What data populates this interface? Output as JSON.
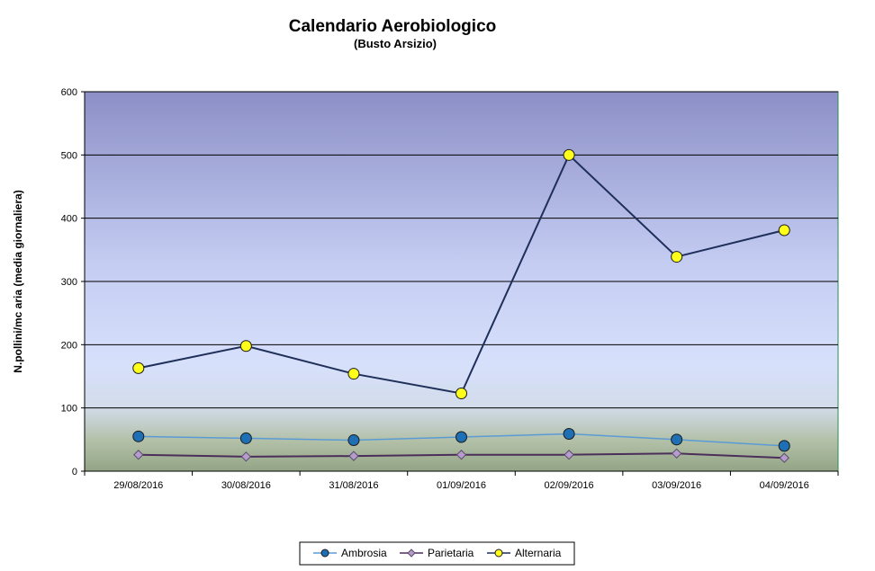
{
  "chart_data": {
    "type": "line",
    "title": "Calendario Aerobiologico",
    "subtitle": "(Busto Arsizio)",
    "xlabel": "",
    "ylabel": "N.pollini/mc aria (media giornaliera)",
    "categories": [
      "29/08/2016",
      "30/08/2016",
      "31/08/2016",
      "01/09/2016",
      "02/09/2016",
      "03/09/2016",
      "04/09/2016"
    ],
    "ylim": [
      0,
      600
    ],
    "yticks": [
      0,
      100,
      200,
      300,
      400,
      500,
      600
    ],
    "grid": true,
    "legend_position": "bottom",
    "series": [
      {
        "name": "Ambrosia",
        "values": [
          55,
          52,
          49,
          54,
          59,
          50,
          40
        ],
        "color": "#5b9bd5",
        "marker": "circle",
        "marker_fill": "#1f6fb5"
      },
      {
        "name": "Parietaria",
        "values": [
          26,
          23,
          24,
          26,
          26,
          28,
          21
        ],
        "color": "#4b2e5a",
        "marker": "diamond",
        "marker_fill": "#b59ccc"
      },
      {
        "name": "Alternaria",
        "values": [
          163,
          198,
          154,
          123,
          500,
          339,
          381
        ],
        "color": "#1f2f5a",
        "marker": "circle",
        "marker_fill": "#ffff1a"
      }
    ]
  }
}
